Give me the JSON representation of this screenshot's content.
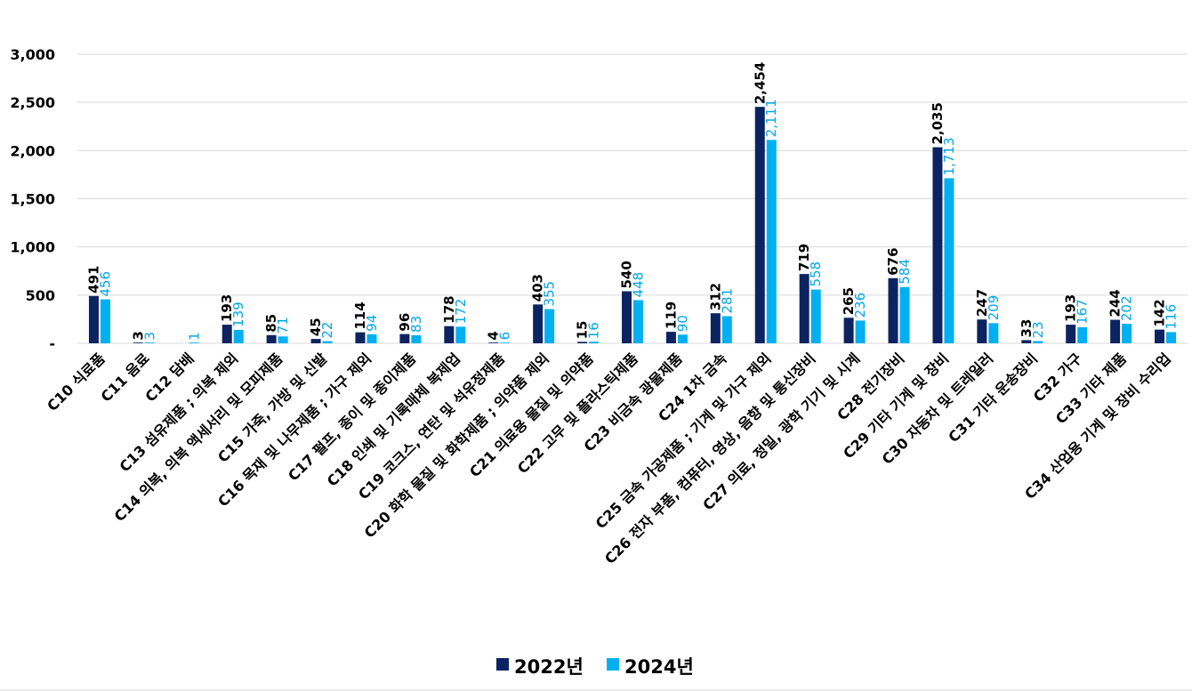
{
  "chart_data": {
    "type": "bar",
    "title": "",
    "xlabel": "",
    "ylabel": "",
    "ylim": [
      0,
      3000
    ],
    "yticks": [
      0,
      500,
      1000,
      1500,
      2000,
      2500,
      3000
    ],
    "ytick_labels": [
      "-",
      "500",
      "1,000",
      "1,500",
      "2,000",
      "2,500",
      "3,000"
    ],
    "grid": true,
    "legend_position": "bottom",
    "categories": [
      "C10 식료품",
      "C11 음료",
      "C12 담배",
      "C13 섬유제품 ; 의복 제외",
      "C14 의복, 의복 액세서리 및 모피제품",
      "C15 가죽, 가방 및 신발",
      "C16 목재 및 나무제품 ; 가구 제외",
      "C17 펄프, 종이 및 종이제품",
      "C18 인쇄 및 기록매체 복제업",
      "C19 코크스, 연탄 및 석유정제품",
      "C20 화학 물질 및 화학제품 ; 의약품 제외",
      "C21 의료용 물질 및 의약품",
      "C22 고무 및 플라스틱제품",
      "C23 비금속 광물제품",
      "C24 1차 금속",
      "C25 금속 가공제품 ; 기계 및 가구 제외",
      "C26 전자 부품, 컴퓨터, 영상, 음향 및 통신장비",
      "C27 의료, 정밀, 광학 기기 및 시계",
      "C28 전기장비",
      "C29 기타 기계 및 장비",
      "C30 자동차 및 트레일러",
      "C31 기타 운송장비",
      "C32 가구",
      "C33 기타 제품",
      "C34 산업용 기계 및 장비 수리업"
    ],
    "series": [
      {
        "name": "2022년",
        "color": "#0b2461",
        "values": [
          491,
          3,
          null,
          193,
          85,
          45,
          114,
          96,
          178,
          4,
          403,
          15,
          540,
          119,
          312,
          2454,
          719,
          265,
          676,
          2035,
          247,
          33,
          193,
          244,
          142
        ],
        "labels": [
          "491",
          "3",
          "",
          "193",
          "85",
          "45",
          "114",
          "96",
          "178",
          "4",
          "403",
          "15",
          "540",
          "119",
          "312",
          "2,454",
          "719",
          "265",
          "676",
          "2,035",
          "247",
          "33",
          "193",
          "244",
          "142"
        ]
      },
      {
        "name": "2024년",
        "color": "#00b0f0",
        "values": [
          456,
          3,
          1,
          139,
          71,
          22,
          94,
          83,
          172,
          6,
          355,
          16,
          448,
          90,
          281,
          2111,
          558,
          236,
          584,
          1713,
          209,
          23,
          167,
          202,
          116
        ],
        "labels": [
          "456",
          "3",
          "1",
          "139",
          "71",
          "22",
          "94",
          "83",
          "172",
          "6",
          "355",
          "16",
          "448",
          "90",
          "281",
          "2,111",
          "558",
          "236",
          "584",
          "1,713",
          "209",
          "23",
          "167",
          "202",
          "116"
        ]
      }
    ]
  }
}
